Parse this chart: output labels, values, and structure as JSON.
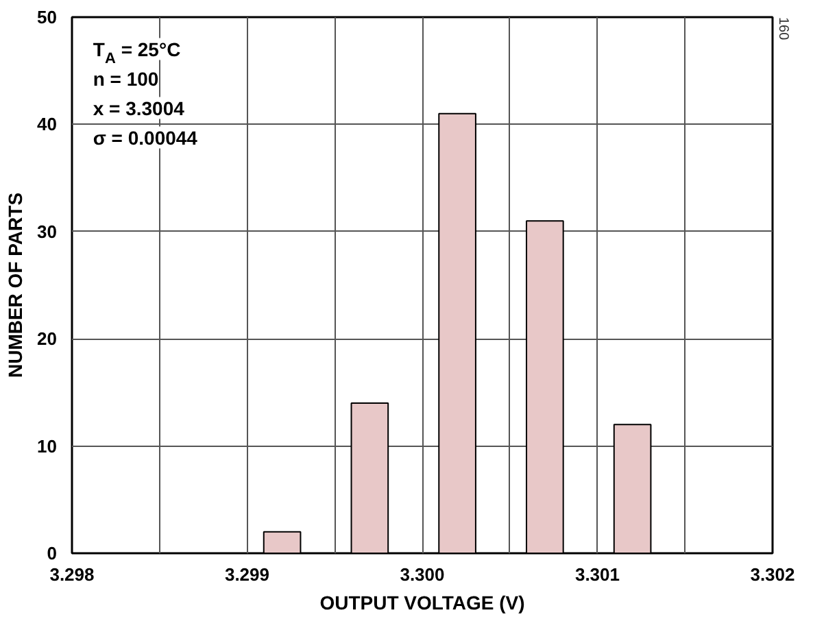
{
  "chart_data": {
    "type": "bar",
    "xlabel": "OUTPUT VOLTAGE (V)",
    "ylabel": "NUMBER OF PARTS",
    "x": [
      3.2992,
      3.2997,
      3.3002,
      3.3007,
      3.3012
    ],
    "values": [
      2,
      14,
      41,
      31,
      12
    ],
    "color": "#e8c8c8",
    "xlim": [
      3.298,
      3.302
    ],
    "xticks": [
      {
        "value": 3.298,
        "label": "3.298"
      },
      {
        "value": 3.2985,
        "label": null
      },
      {
        "value": 3.299,
        "label": "3.299"
      },
      {
        "value": 3.2995,
        "label": null
      },
      {
        "value": 3.3,
        "label": "3.300"
      },
      {
        "value": 3.3005,
        "label": null
      },
      {
        "value": 3.301,
        "label": "3.301"
      },
      {
        "value": 3.3015,
        "label": null
      },
      {
        "value": 3.302,
        "label": "3.302"
      }
    ],
    "ylim": [
      0,
      50
    ],
    "yticks": [
      0,
      10,
      20,
      30,
      40,
      50
    ],
    "grid": true,
    "annotations": [
      "T$_{A}$ = 25°C",
      "n = 100",
      "x = 3.3004",
      "σ = 0.00044",
      "160"
    ]
  }
}
